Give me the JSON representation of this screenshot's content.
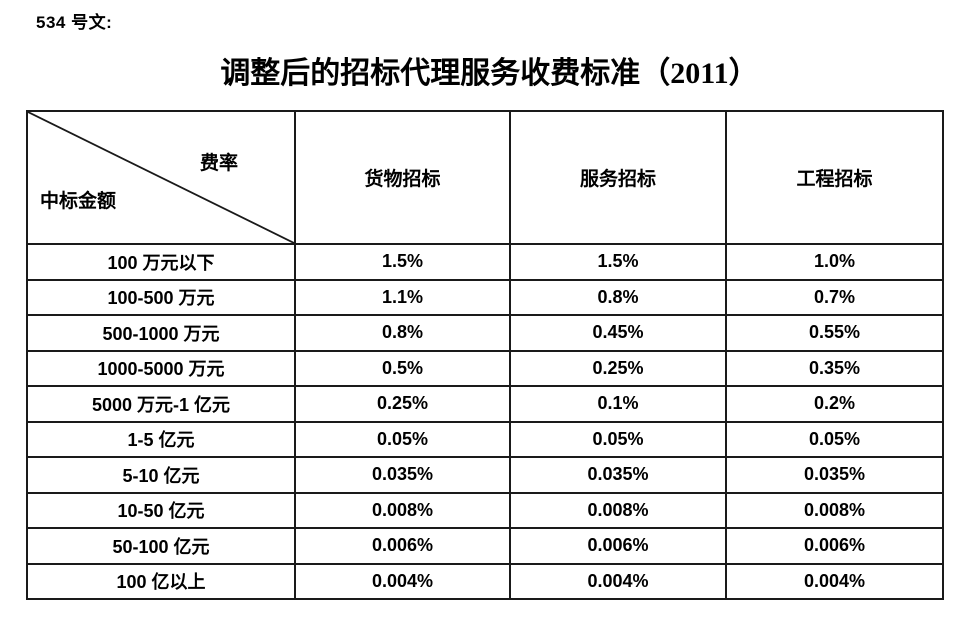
{
  "doc_number": "534 号文:",
  "title": "调整后的招标代理服务收费标准（2011）",
  "table": {
    "corner": {
      "top_right": "费率",
      "bottom_left": "中标金额"
    },
    "columns": [
      "货物招标",
      "服务招标",
      "工程招标"
    ],
    "rows": [
      {
        "label": "100 万元以下",
        "values": [
          "1.5%",
          "1.5%",
          "1.0%"
        ]
      },
      {
        "label": "100-500 万元",
        "values": [
          "1.1%",
          "0.8%",
          "0.7%"
        ]
      },
      {
        "label": "500-1000 万元",
        "values": [
          "0.8%",
          "0.45%",
          "0.55%"
        ]
      },
      {
        "label": "1000-5000 万元",
        "values": [
          "0.5%",
          "0.25%",
          "0.35%"
        ]
      },
      {
        "label": "5000 万元-1 亿元",
        "values": [
          "0.25%",
          "0.1%",
          "0.2%"
        ]
      },
      {
        "label": "1-5 亿元",
        "values": [
          "0.05%",
          "0.05%",
          "0.05%"
        ]
      },
      {
        "label": "5-10 亿元",
        "values": [
          "0.035%",
          "0.035%",
          "0.035%"
        ]
      },
      {
        "label": "10-50 亿元",
        "values": [
          "0.008%",
          "0.008%",
          "0.008%"
        ]
      },
      {
        "label": "50-100 亿元",
        "values": [
          "0.006%",
          "0.006%",
          "0.006%"
        ]
      },
      {
        "label": "100 亿以上",
        "values": [
          "0.004%",
          "0.004%",
          "0.004%"
        ]
      }
    ],
    "border_color": "#1a1a1a"
  }
}
